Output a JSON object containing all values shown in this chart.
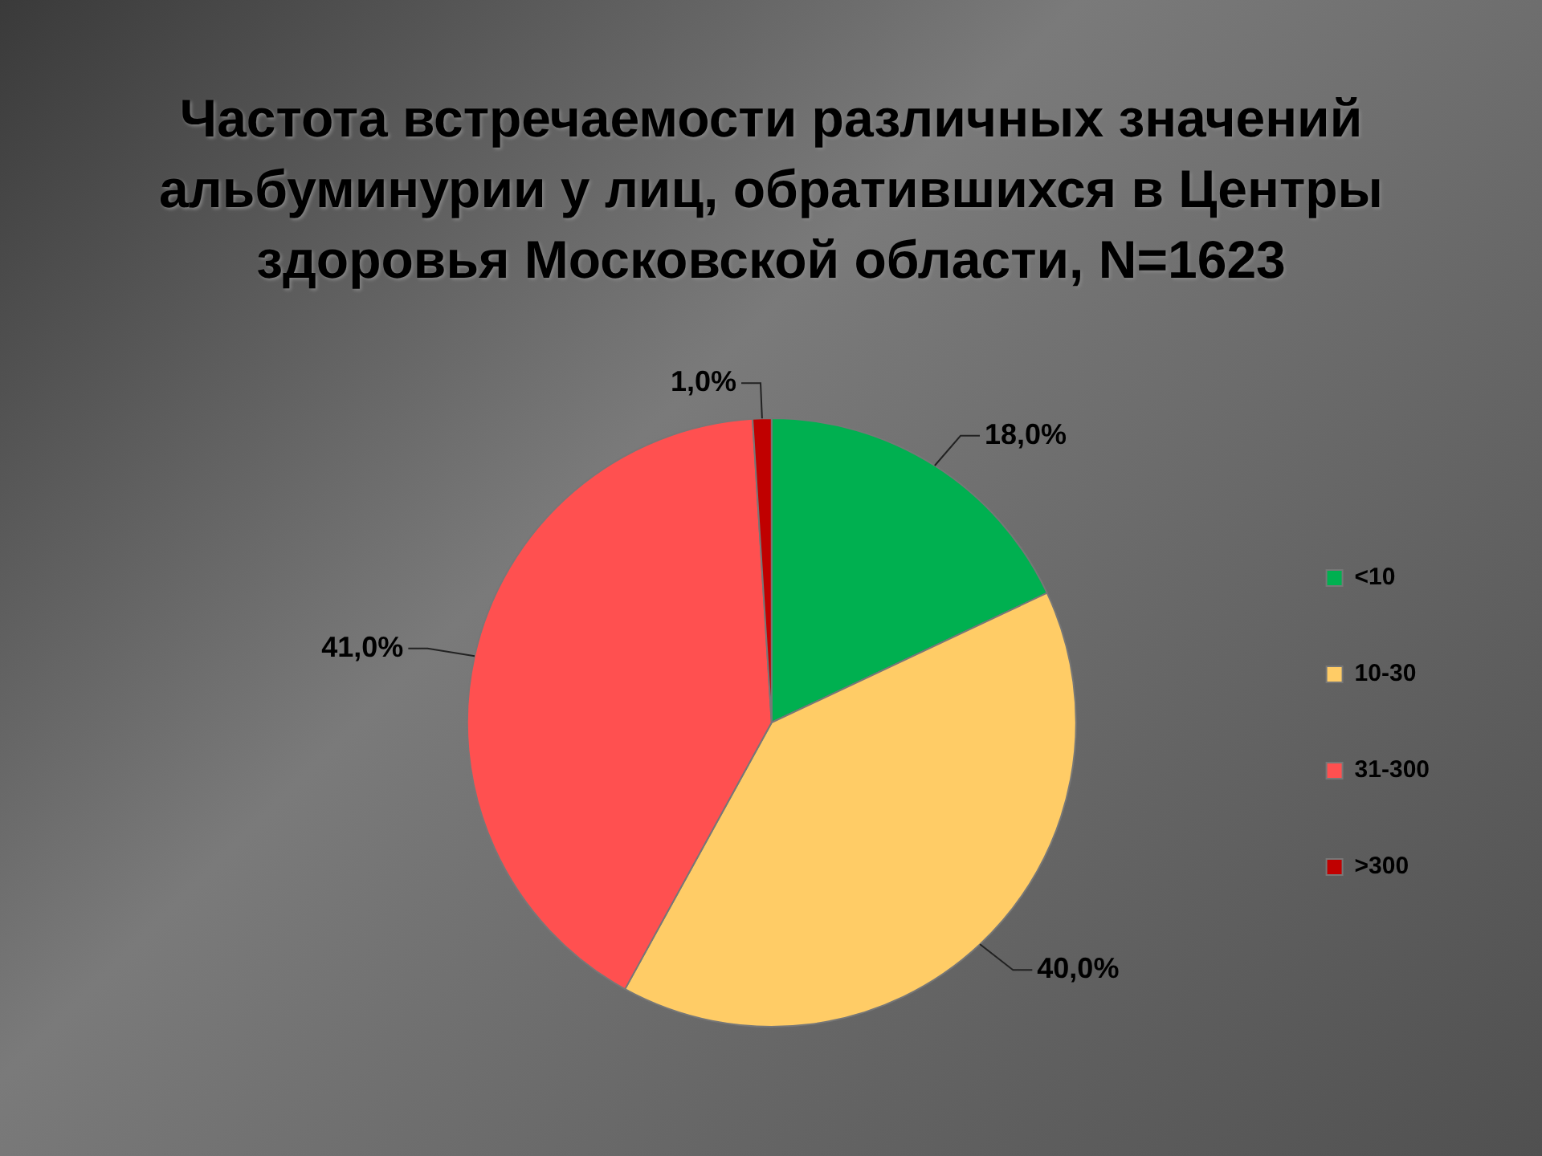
{
  "chart_data": {
    "type": "pie",
    "title": "Частота встречаемости различных значений альбуминурии у лиц, обратившихся в Центры здоровья Московской области, N=1623",
    "categories": [
      "<10",
      "10-30",
      "31-300",
      ">300"
    ],
    "values": [
      18,
      40,
      41,
      1
    ],
    "colors": [
      "#00b050",
      "#ffcc66",
      "#ff5050",
      "#c00000"
    ],
    "value_labels": [
      "18,0%",
      "40,0%",
      "41,0%",
      "1,0%"
    ],
    "legend": "right"
  }
}
